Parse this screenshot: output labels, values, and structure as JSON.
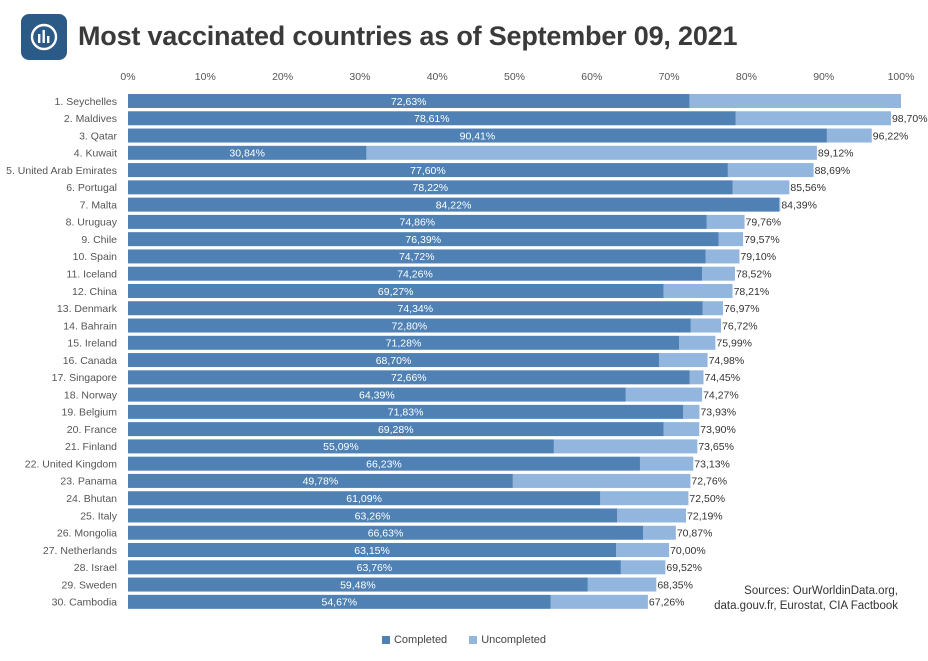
{
  "title": "Most vaccinated countries as of September 09, 2021",
  "sources": {
    "line1": "Sources: OurWorldinData.org,",
    "line2": "data.gouv.fr, Eurostat, CIA Factbook"
  },
  "legend": {
    "completed_label": "Completed",
    "uncompleted_label": "Uncompleted"
  },
  "colors": {
    "completed": "#4f81b5",
    "uncompleted": "#92b6de",
    "logo": "#2c5a87"
  },
  "icons": {
    "logo": "chart-logo-icon"
  },
  "chart_data": {
    "type": "bar",
    "orientation": "horizontal",
    "stacked": true,
    "title": "Most vaccinated countries as of September 09, 2021",
    "xlim": [
      0,
      100
    ],
    "x_ticks": [
      "0%",
      "10%",
      "20%",
      "30%",
      "40%",
      "50%",
      "60%",
      "70%",
      "80%",
      "90%",
      "100%"
    ],
    "x_axis_position": "top",
    "grid": false,
    "legend_position": "bottom-center",
    "categories": [
      "1. Seychelles",
      "2. Maldives",
      "3. Qatar",
      "4. Kuwait",
      "5. United Arab Emirates",
      "6. Portugal",
      "7. Malta",
      "8. Uruguay",
      "9. Chile",
      "10. Spain",
      "11. Iceland",
      "12. China",
      "13. Denmark",
      "14. Bahrain",
      "15. Ireland",
      "16. Canada",
      "17. Singapore",
      "18. Norway",
      "19. Belgium",
      "20. France",
      "21. Finland",
      "22. United Kingdom",
      "23. Panama",
      "24. Bhutan",
      "25. Italy",
      "26. Mongolia",
      "27. Netherlands",
      "28. Israel",
      "29. Sweden",
      "30. Cambodia"
    ],
    "completed": [
      72.63,
      78.61,
      90.41,
      30.84,
      77.6,
      78.22,
      84.22,
      74.86,
      76.39,
      74.72,
      74.26,
      69.27,
      74.34,
      72.8,
      71.28,
      68.7,
      72.66,
      64.39,
      71.83,
      69.28,
      55.09,
      66.23,
      49.78,
      61.09,
      63.26,
      66.63,
      63.15,
      63.76,
      59.48,
      54.67
    ],
    "total": [
      100,
      98.7,
      96.22,
      89.12,
      88.69,
      85.56,
      84.39,
      79.76,
      79.57,
      79.1,
      78.52,
      78.21,
      76.97,
      76.72,
      75.99,
      74.98,
      74.45,
      74.27,
      73.93,
      73.9,
      73.65,
      73.13,
      72.76,
      72.5,
      72.19,
      70.87,
      70.0,
      69.52,
      68.35,
      67.26
    ],
    "completed_labels": [
      "72,63%",
      "78,61%",
      "90,41%",
      "30,84%",
      "77,60%",
      "78,22%",
      "84,22%",
      "74,86%",
      "76,39%",
      "74,72%",
      "74,26%",
      "69,27%",
      "74,34%",
      "72,80%",
      "71,28%",
      "68,70%",
      "72,66%",
      "64,39%",
      "71,83%",
      "69,28%",
      "55,09%",
      "66,23%",
      "49,78%",
      "61,09%",
      "63,26%",
      "66,63%",
      "63,15%",
      "63,76%",
      "59,48%",
      "54,67%"
    ],
    "total_labels": [
      "",
      "98,70%",
      "96,22%",
      "89,12%",
      "88,69%",
      "85,56%",
      "84,39%",
      "79,76%",
      "79,57%",
      "79,10%",
      "78,52%",
      "78,21%",
      "76,97%",
      "76,72%",
      "75,99%",
      "74,98%",
      "74,45%",
      "74,27%",
      "73,93%",
      "73,90%",
      "73,65%",
      "73,13%",
      "72,76%",
      "72,50%",
      "72,19%",
      "70,87%",
      "70,00%",
      "69,52%",
      "68,35%",
      "67,26%"
    ],
    "series": [
      {
        "name": "Completed"
      },
      {
        "name": "Uncompleted"
      }
    ]
  }
}
